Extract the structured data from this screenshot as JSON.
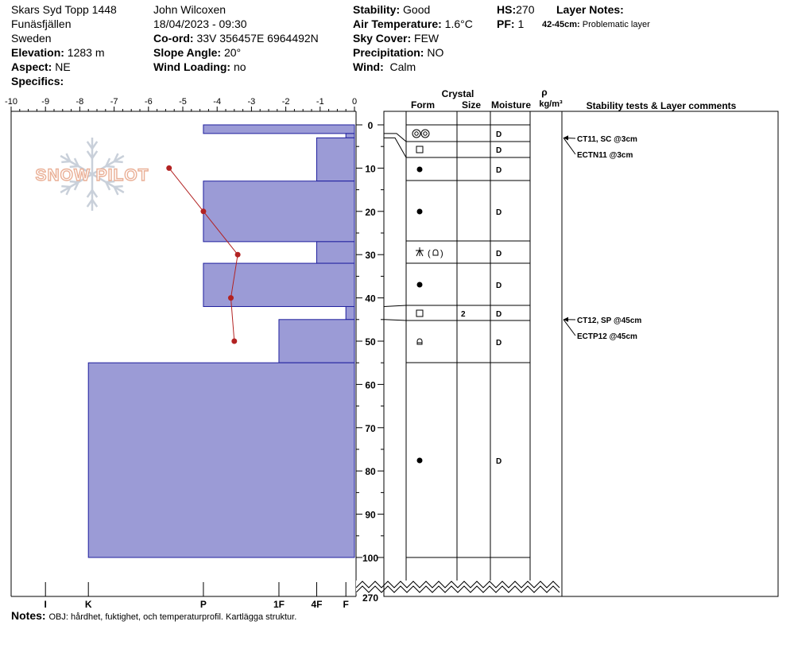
{
  "header": {
    "location": "Skars Syd Topp 1448",
    "region": "Funäsfjällen",
    "country": "Sweden",
    "elevation_label": "Elevation:",
    "elevation": "1283 m",
    "aspect_label": "Aspect:",
    "aspect": "NE",
    "specifics_label": "Specifics:",
    "observer": "John Wilcoxen",
    "datetime": "18/04/2023 - 09:30",
    "coord_label": "Co-ord:",
    "coord": "33V 356457E 6964492N",
    "slope_label": "Slope Angle:",
    "slope": "20°",
    "wind_loading_label": "Wind Loading:",
    "wind_loading": "no",
    "stability_label": "Stability:",
    "stability": "Good",
    "air_temp_label": "Air Temperature:",
    "air_temp": "1.6°C",
    "sky_label": "Sky Cover:",
    "sky": "FEW",
    "precip_label": "Precipitation:",
    "precip": "NO",
    "wind_label": "Wind:",
    "wind": "Calm",
    "hs_label": "HS:",
    "hs": "270",
    "pf_label": "PF:",
    "pf": "1",
    "layer_notes_label": "Layer Notes:",
    "layer_note_depth": "42-45cm:",
    "layer_note_text": "Problematic layer"
  },
  "notes_label": "Notes:",
  "notes": "OBJ: hårdhet, fuktighet, och temperaturprofil. Kartlägga struktur.",
  "watermark": "SNOW PILOT",
  "columns": {
    "crystal": "Crystal",
    "form": "Form",
    "size": "Size",
    "moisture": "Moisture",
    "rho": "ρ",
    "density_unit": "kg/m³",
    "stability_comments": "Stability tests & Layer comments"
  },
  "chart_data": {
    "type": "bar",
    "temp_axis_ticks": [
      "-10",
      "-9",
      "-8",
      "-7",
      "-6",
      "-5",
      "-4",
      "-3",
      "-2",
      "-1",
      "0"
    ],
    "temp_range": [
      -10,
      0
    ],
    "hardness_ticks": [
      "I",
      "K",
      "P",
      "1F",
      "4F",
      "F"
    ],
    "depth_range": [
      0,
      100
    ],
    "depth_ticks": [
      "0",
      "10",
      "20",
      "30",
      "40",
      "50",
      "60",
      "70",
      "80",
      "90",
      "100"
    ],
    "depth_bottom_label": "270",
    "layers": [
      {
        "top": 0,
        "bottom": 2,
        "hardness": -4.4,
        "form": "",
        "size": "",
        "moisture": ""
      },
      {
        "top": 2,
        "bottom": 3,
        "hardness": -0.25,
        "form": "",
        "size": "",
        "moisture": ""
      },
      {
        "top": 3,
        "bottom": 13,
        "hardness": -1.1,
        "form": "round",
        "size": "",
        "moisture": "D"
      },
      {
        "top": 13,
        "bottom": 27,
        "hardness": -4.4,
        "form": "dot",
        "size": "",
        "moisture": "D"
      },
      {
        "top": 27,
        "bottom": 32,
        "hardness": -1.1,
        "form": "mixed",
        "size": "",
        "moisture": "D"
      },
      {
        "top": 32,
        "bottom": 42,
        "hardness": -4.4,
        "form": "dot",
        "size": "",
        "moisture": "D"
      },
      {
        "top": 42,
        "bottom": 45,
        "hardness": -0.25,
        "form": "square",
        "size": "2",
        "moisture": "D"
      },
      {
        "top": 45,
        "bottom": 55,
        "hardness": -2.2,
        "form": "cup",
        "size": "",
        "moisture": "D"
      },
      {
        "top": 55,
        "bottom": 100,
        "hardness": -7.75,
        "form": "dot",
        "size": "",
        "moisture": "D"
      }
    ],
    "moisture_values": [
      "D",
      "D",
      "D",
      "D",
      "D",
      "D",
      "D",
      "D",
      "D"
    ],
    "crystal_sizes": [
      "2"
    ],
    "temperature_profile": [
      {
        "depth": 10,
        "temp": -5.4
      },
      {
        "depth": 20,
        "temp": -4.4
      },
      {
        "depth": 30,
        "temp": -3.4
      },
      {
        "depth": 40,
        "temp": -3.6
      },
      {
        "depth": 50,
        "temp": -3.5
      }
    ],
    "stability_tests": [
      {
        "depth": 3,
        "text": "CT11, SC @3cm"
      },
      {
        "depth": 3,
        "text": "ECTN11 @3cm"
      },
      {
        "depth": 45,
        "text": "CT12, SP @45cm"
      },
      {
        "depth": 45,
        "text": "ECTP12 @45cm"
      }
    ],
    "colors": {
      "bar_fill": "#9b9bd6",
      "bar_stroke": "#1f1f9e",
      "temp_line": "#b22222",
      "watermark": "#e8a88c"
    }
  }
}
